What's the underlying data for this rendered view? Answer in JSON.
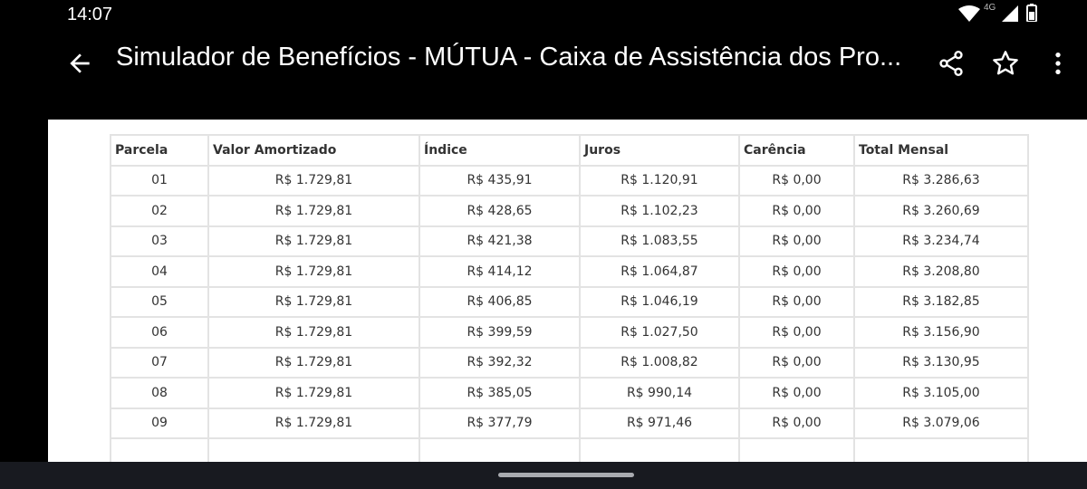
{
  "status_bar": {
    "time": "14:07",
    "network_label": "4G",
    "icons": [
      "wifi-icon",
      "cellular-signal-icon",
      "battery-icon"
    ]
  },
  "app_bar": {
    "title": "Simulador de Benefícios - MÚTUA - Caixa de Assistência dos Pro...",
    "icons": [
      "back-arrow-icon",
      "share-icon",
      "star-icon",
      "more-vert-icon"
    ]
  },
  "table": {
    "headers": [
      "Parcela",
      "Valor Amortizado",
      "Índice",
      "Juros",
      "Carência",
      "Total Mensal"
    ],
    "rows": [
      [
        "01",
        "R$ 1.729,81",
        "R$ 435,91",
        "R$ 1.120,91",
        "R$ 0,00",
        "R$ 3.286,63"
      ],
      [
        "02",
        "R$ 1.729,81",
        "R$ 428,65",
        "R$ 1.102,23",
        "R$ 0,00",
        "R$ 3.260,69"
      ],
      [
        "03",
        "R$ 1.729,81",
        "R$ 421,38",
        "R$ 1.083,55",
        "R$ 0,00",
        "R$ 3.234,74"
      ],
      [
        "04",
        "R$ 1.729,81",
        "R$ 414,12",
        "R$ 1.064,87",
        "R$ 0,00",
        "R$ 3.208,80"
      ],
      [
        "05",
        "R$ 1.729,81",
        "R$ 406,85",
        "R$ 1.046,19",
        "R$ 0,00",
        "R$ 3.182,85"
      ],
      [
        "06",
        "R$ 1.729,81",
        "R$ 399,59",
        "R$ 1.027,50",
        "R$ 0,00",
        "R$ 3.156,90"
      ],
      [
        "07",
        "R$ 1.729,81",
        "R$ 392,32",
        "R$ 1.008,82",
        "R$ 0,00",
        "R$ 3.130,95"
      ],
      [
        "08",
        "R$ 1.729,81",
        "R$ 385,05",
        "R$ 990,14",
        "R$ 0,00",
        "R$ 3.105,00"
      ],
      [
        "09",
        "R$ 1.729,81",
        "R$ 377,79",
        "R$ 971,46",
        "R$ 0,00",
        "R$ 3.079,06"
      ],
      [
        "",
        "",
        "",
        "",
        "",
        ""
      ]
    ]
  },
  "colors": {
    "background": "#000000",
    "content_background": "#ffffff",
    "table_border": "#e3e3e3",
    "table_text": "#333333",
    "nav_bar": "#181a20"
  }
}
